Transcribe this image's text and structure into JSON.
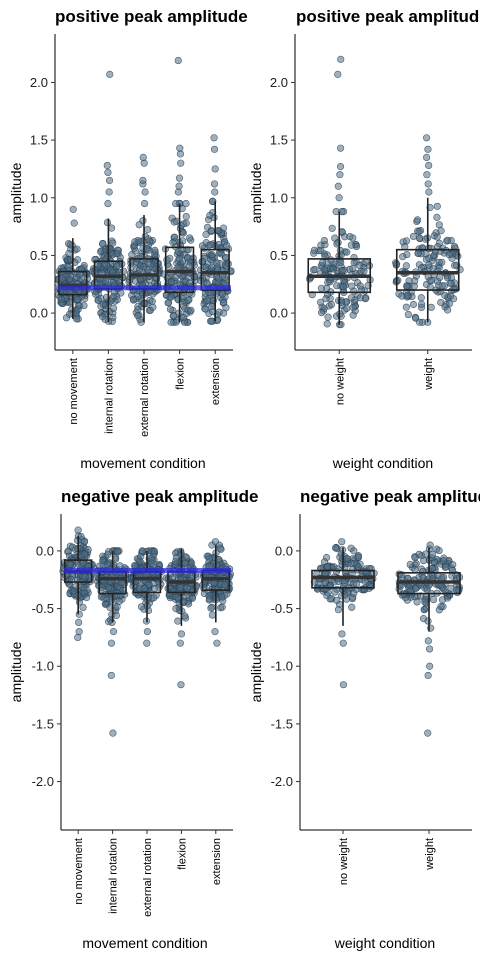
{
  "colors": {
    "points": "#4f6f86",
    "reference_line": "#2b2be0",
    "box": "#222222"
  },
  "chart_data": [
    {
      "id": "pos-movement",
      "type": "box-dotplot",
      "title": "positive peak amplitude",
      "xlabel": "movement condition",
      "ylabel": "amplitude",
      "ylim": [
        -0.32,
        2.42
      ],
      "yticks": [
        0.0,
        0.5,
        1.0,
        1.5,
        2.0
      ],
      "ytick_labels": [
        "0.0",
        "0.5",
        "1.0",
        "1.5",
        "2.0"
      ],
      "categories": [
        "no movement",
        "internal rotation",
        "external rotation",
        "flexion",
        "extension"
      ],
      "reference_line": 0.22,
      "boxes": [
        {
          "q1": 0.16,
          "median": 0.24,
          "q3": 0.36,
          "whisker_low": -0.05,
          "whisker_high": 0.65,
          "outliers": [
            0.78,
            0.9
          ]
        },
        {
          "q1": 0.21,
          "median": 0.32,
          "q3": 0.45,
          "whisker_low": -0.08,
          "whisker_high": 0.82,
          "outliers": [
            0.95,
            1.05,
            1.15,
            1.22,
            1.28,
            2.07
          ]
        },
        {
          "q1": 0.21,
          "median": 0.33,
          "q3": 0.47,
          "whisker_low": -0.08,
          "whisker_high": 0.85,
          "outliers": [
            0.95,
            1.05,
            1.12,
            1.15,
            1.3,
            1.35
          ]
        },
        {
          "q1": 0.18,
          "median": 0.36,
          "q3": 0.57,
          "whisker_low": -0.08,
          "whisker_high": 0.95,
          "outliers": [
            1.05,
            1.1,
            1.17,
            1.3,
            1.38,
            1.43,
            2.19
          ]
        },
        {
          "q1": 0.2,
          "median": 0.35,
          "q3": 0.55,
          "whisker_low": -0.07,
          "whisker_high": 0.97,
          "outliers": [
            1.05,
            1.12,
            1.25,
            1.42,
            1.52
          ]
        }
      ]
    },
    {
      "id": "pos-weight",
      "type": "box-dotplot",
      "title": "positive peak amplitude",
      "xlabel": "weight condition",
      "ylabel": "amplitude",
      "ylim": [
        -0.32,
        2.42
      ],
      "yticks": [
        0.0,
        0.5,
        1.0,
        1.5,
        2.0
      ],
      "ytick_labels": [
        "0.0",
        "0.5",
        "1.0",
        "1.5",
        "2.0"
      ],
      "categories": [
        "no weight",
        "weight"
      ],
      "reference_line": null,
      "boxes": [
        {
          "q1": 0.18,
          "median": 0.32,
          "q3": 0.47,
          "whisker_low": -0.1,
          "whisker_high": 0.88,
          "outliers": [
            1.0,
            1.1,
            1.2,
            1.27,
            1.43,
            2.07,
            2.2
          ]
        },
        {
          "q1": 0.2,
          "median": 0.35,
          "q3": 0.55,
          "whisker_low": -0.08,
          "whisker_high": 1.0,
          "outliers": [
            1.05,
            1.12,
            1.2,
            1.28,
            1.35,
            1.42,
            1.52
          ]
        }
      ]
    },
    {
      "id": "neg-movement",
      "type": "box-dotplot",
      "title": "negative peak amplitude",
      "xlabel": "movement condition",
      "ylabel": "amplitude",
      "ylim": [
        -2.42,
        0.32
      ],
      "yticks": [
        0.0,
        -0.5,
        -1.0,
        -1.5,
        -2.0
      ],
      "ytick_labels": [
        "0.0",
        "-0.5",
        "-1.0",
        "-1.5",
        "-2.0"
      ],
      "categories": [
        "no movement",
        "internal rotation",
        "external rotation",
        "flexion",
        "extension"
      ],
      "reference_line": -0.17,
      "boxes": [
        {
          "q1": -0.27,
          "median": -0.18,
          "q3": -0.08,
          "whisker_low": -0.55,
          "whisker_high": 0.13,
          "outliers": [
            0.18,
            -0.62,
            -0.7,
            -0.75
          ]
        },
        {
          "q1": -0.37,
          "median": -0.24,
          "q3": -0.18,
          "whisker_low": -0.62,
          "whisker_high": 0.0,
          "outliers": [
            -0.7,
            -0.8,
            -1.08,
            -1.58
          ]
        },
        {
          "q1": -0.36,
          "median": -0.24,
          "q3": -0.18,
          "whisker_low": -0.62,
          "whisker_high": 0.0,
          "outliers": [
            -0.7,
            -0.8
          ]
        },
        {
          "q1": -0.36,
          "median": -0.27,
          "q3": -0.18,
          "whisker_low": -0.65,
          "whisker_high": 0.02,
          "outliers": [
            -0.72,
            -0.8,
            -1.16
          ]
        },
        {
          "q1": -0.34,
          "median": -0.24,
          "q3": -0.17,
          "whisker_low": -0.62,
          "whisker_high": 0.05,
          "outliers": [
            0.08,
            -0.7,
            -0.8
          ]
        }
      ]
    },
    {
      "id": "neg-weight",
      "type": "box-dotplot",
      "title": "negative peak amplitude",
      "xlabel": "weight condition",
      "ylabel": "amplitude",
      "ylim": [
        -2.42,
        0.32
      ],
      "yticks": [
        0.0,
        -0.5,
        -1.0,
        -1.5,
        -2.0
      ],
      "ytick_labels": [
        "0.0",
        "-0.5",
        "-1.0",
        "-1.5",
        "-2.0"
      ],
      "categories": [
        "no weight",
        "weight"
      ],
      "reference_line": null,
      "boxes": [
        {
          "q1": -0.32,
          "median": -0.23,
          "q3": -0.17,
          "whisker_low": -0.65,
          "whisker_high": 0.03,
          "outliers": [
            0.08,
            -0.72,
            -0.8,
            -1.16
          ]
        },
        {
          "q1": -0.37,
          "median": -0.27,
          "q3": -0.19,
          "whisker_low": -0.7,
          "whisker_high": 0.03,
          "outliers": [
            0.05,
            -0.78,
            -0.85,
            -1.0,
            -1.08,
            -1.58
          ]
        }
      ]
    }
  ]
}
